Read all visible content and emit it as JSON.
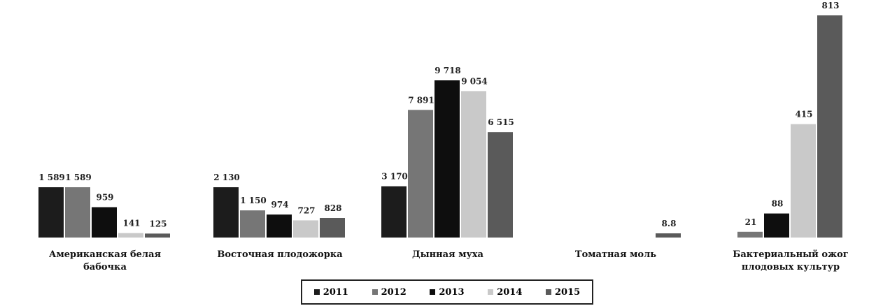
{
  "chart_data": {
    "type": "bar",
    "categories": [
      "Американская белая бабочка",
      "Восточная плодожорка",
      "Дынная муха",
      "Томатная моль",
      "Бактериальный ожог плодовых культур"
    ],
    "series": [
      {
        "name": "2011",
        "color": "#1c1c1c",
        "values": [
          1589,
          2130,
          3170,
          null,
          null
        ],
        "value_labels": [
          "1 589",
          "2 130",
          "3 170",
          null,
          null
        ]
      },
      {
        "name": "2012",
        "color": "#767676",
        "values": [
          1589,
          1150,
          7891,
          null,
          21
        ],
        "value_labels": [
          "1 589",
          "1 150",
          "7 891",
          null,
          "21"
        ]
      },
      {
        "name": "2013",
        "color": "#0e0e0e",
        "values": [
          959,
          974,
          9718,
          null,
          88
        ],
        "value_labels": [
          "959",
          "974",
          "9 718",
          null,
          "88"
        ]
      },
      {
        "name": "2014",
        "color": "#c9c9c9",
        "values": [
          141,
          727,
          9054,
          null,
          415
        ],
        "value_labels": [
          "141",
          "727",
          "9 054",
          null,
          "415"
        ]
      },
      {
        "name": "2015",
        "color": "#5a5a5a",
        "values": [
          125,
          828,
          6515,
          8.8,
          813
        ],
        "value_labels": [
          "125",
          "828",
          "6 515",
          "8.8",
          "813"
        ]
      }
    ],
    "legend": "bottom"
  }
}
